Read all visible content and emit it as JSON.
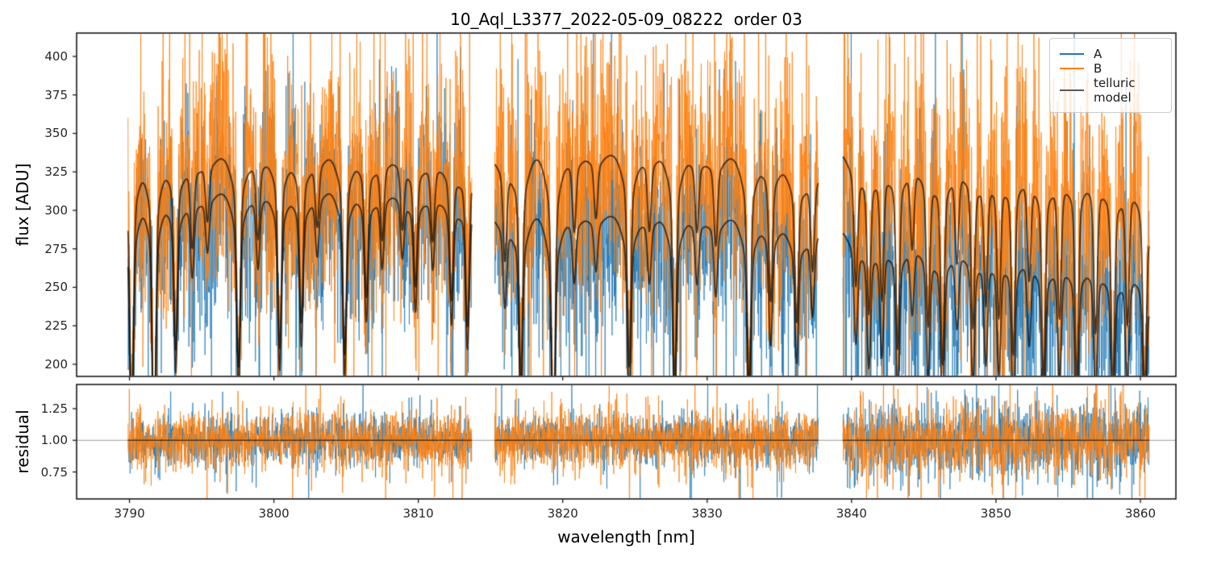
{
  "title": "10_Aql_L3377_2022-05-09_08222  order 03",
  "legend": {
    "position": "upper right",
    "entries": [
      {
        "label": "A",
        "color": "#1f77b4"
      },
      {
        "label": "B",
        "color": "#ff7f0e"
      },
      {
        "label": "telluric model",
        "color": "#595959"
      }
    ]
  },
  "chart_data": {
    "type": "line",
    "title": "10_Aql_L3377_2022-05-09_08222  order 03",
    "xlabel": "wavelength [nm]",
    "x_range_nm": [
      3786.34,
      3862.46
    ],
    "xticks": [
      "3790",
      "3800",
      "3810",
      "3820",
      "3830",
      "3840",
      "3850",
      "3860"
    ],
    "grid": false,
    "sample_step_nm": 0.018,
    "segments_nm": [
      [
        3789.9,
        3813.7
      ],
      [
        3815.3,
        3837.7
      ],
      [
        3839.4,
        3860.6
      ]
    ],
    "flux_panel": {
      "ylabel": "flux [ADU]",
      "ylim": [
        192.1,
        415.2
      ],
      "yticks": [
        "200",
        "225",
        "250",
        "275",
        "300",
        "325",
        "350",
        "375",
        "400"
      ],
      "continuum_A": [
        [
          3789.9,
          303
        ],
        [
          3791.0,
          310
        ],
        [
          3796,
          312
        ],
        [
          3800,
          313
        ],
        [
          3806,
          314
        ],
        [
          3810,
          313
        ],
        [
          3813.7,
          311
        ],
        [
          3815.3,
          296
        ],
        [
          3819,
          297
        ],
        [
          3825,
          297
        ],
        [
          3830,
          296
        ],
        [
          3834,
          293
        ],
        [
          3836.3,
          286
        ],
        [
          3837.7,
          290
        ],
        [
          3839.4,
          287
        ],
        [
          3843,
          284
        ],
        [
          3848,
          280
        ],
        [
          3852,
          276
        ],
        [
          3856,
          270
        ],
        [
          3859,
          266
        ],
        [
          3860.6,
          269
        ]
      ],
      "continuum_B": [
        [
          3789.9,
          330
        ],
        [
          3791.0,
          334
        ],
        [
          3796,
          335
        ],
        [
          3800,
          336
        ],
        [
          3806,
          336
        ],
        [
          3810,
          335
        ],
        [
          3813.7,
          333
        ],
        [
          3815.3,
          334
        ],
        [
          3819,
          336
        ],
        [
          3825,
          337
        ],
        [
          3830,
          336
        ],
        [
          3834,
          333
        ],
        [
          3836.3,
          324
        ],
        [
          3837.7,
          327
        ],
        [
          3839.4,
          337
        ],
        [
          3843,
          336
        ],
        [
          3848,
          334
        ],
        [
          3852,
          331
        ],
        [
          3856,
          328
        ],
        [
          3859,
          325
        ],
        [
          3860.6,
          322
        ]
      ],
      "telluric_lines": [
        {
          "nm": 3790.15,
          "depth": 0.4
        },
        {
          "nm": 3791.7,
          "depth": 0.45
        },
        {
          "nm": 3793.2,
          "depth": 0.3
        },
        {
          "nm": 3794.35,
          "depth": 0.14
        },
        {
          "nm": 3795.4,
          "depth": 0.1
        },
        {
          "nm": 3797.55,
          "depth": 0.33
        },
        {
          "nm": 3798.9,
          "depth": 0.13
        },
        {
          "nm": 3800.4,
          "depth": 0.3
        },
        {
          "nm": 3801.9,
          "depth": 0.26
        },
        {
          "nm": 3803.0,
          "depth": 0.11
        },
        {
          "nm": 3804.9,
          "depth": 0.31
        },
        {
          "nm": 3806.4,
          "depth": 0.22
        },
        {
          "nm": 3807.5,
          "depth": 0.13
        },
        {
          "nm": 3808.9,
          "depth": 0.11
        },
        {
          "nm": 3809.8,
          "depth": 0.2
        },
        {
          "nm": 3811.0,
          "depth": 0.13
        },
        {
          "nm": 3812.3,
          "depth": 0.22
        },
        {
          "nm": 3813.4,
          "depth": 0.26
        },
        {
          "nm": 3816.0,
          "depth": 0.16
        },
        {
          "nm": 3817.1,
          "depth": 0.34
        },
        {
          "nm": 3819.35,
          "depth": 0.45
        },
        {
          "nm": 3820.8,
          "depth": 0.12
        },
        {
          "nm": 3822.3,
          "depth": 0.1
        },
        {
          "nm": 3824.6,
          "depth": 0.33
        },
        {
          "nm": 3826.0,
          "depth": 0.12
        },
        {
          "nm": 3827.75,
          "depth": 0.35
        },
        {
          "nm": 3829.3,
          "depth": 0.12
        },
        {
          "nm": 3830.6,
          "depth": 0.14
        },
        {
          "nm": 3832.9,
          "depth": 0.36
        },
        {
          "nm": 3834.4,
          "depth": 0.22
        },
        {
          "nm": 3836.2,
          "depth": 0.24
        },
        {
          "nm": 3837.3,
          "depth": 0.16
        },
        {
          "nm": 3840.3,
          "depth": 0.2
        },
        {
          "nm": 3841.2,
          "depth": 0.24
        },
        {
          "nm": 3842.1,
          "depth": 0.22
        },
        {
          "nm": 3843.2,
          "depth": 0.3
        },
        {
          "nm": 3844.2,
          "depth": 0.14
        },
        {
          "nm": 3845.3,
          "depth": 0.26
        },
        {
          "nm": 3846.3,
          "depth": 0.32
        },
        {
          "nm": 3847.3,
          "depth": 0.16
        },
        {
          "nm": 3848.4,
          "depth": 0.26
        },
        {
          "nm": 3849.3,
          "depth": 0.22
        },
        {
          "nm": 3850.2,
          "depth": 0.24
        },
        {
          "nm": 3851.2,
          "depth": 0.3
        },
        {
          "nm": 3852.3,
          "depth": 0.18
        },
        {
          "nm": 3853.3,
          "depth": 0.34
        },
        {
          "nm": 3854.4,
          "depth": 0.24
        },
        {
          "nm": 3855.6,
          "depth": 0.34
        },
        {
          "nm": 3856.9,
          "depth": 0.26
        },
        {
          "nm": 3858.1,
          "depth": 0.34
        },
        {
          "nm": 3859.1,
          "depth": 0.24
        },
        {
          "nm": 3860.3,
          "depth": 0.34
        },
        {
          "nm": 3860.9,
          "depth": 0.26
        }
      ],
      "series": [
        {
          "name": "A",
          "color": "#1f77b4",
          "alpha": 0.75,
          "linewidth": 1,
          "continuum": "continuum_A",
          "noise_sigma_rel": [
            0.12,
            0.12,
            0.155
          ],
          "tail_prob": 0.07,
          "tail_scale": 2.4,
          "seed": 101
        },
        {
          "name": "B",
          "color": "#ff7f0e",
          "alpha": 0.8,
          "linewidth": 1,
          "continuum": "continuum_B",
          "noise_sigma_rel": [
            0.13,
            0.13,
            0.145
          ],
          "tail_prob": 0.07,
          "tail_scale": 2.4,
          "seed": 202
        },
        {
          "name": "telluric model",
          "color": "#000000",
          "alpha": 0.65,
          "linewidth": 1.9,
          "curves": [
            "continuum_A",
            "continuum_B"
          ]
        }
      ]
    },
    "residual_panel": {
      "ylabel": "residual",
      "ylim": [
        0.537,
        1.441
      ],
      "yticks": [
        "0.75",
        "1.00",
        "1.25"
      ],
      "baseline": {
        "value": 1.0,
        "color": "#999999",
        "linewidth": 1
      },
      "series": [
        {
          "name": "A",
          "color": "#1f77b4",
          "alpha": 0.75,
          "linewidth": 1,
          "noise_sigma": [
            0.095,
            0.095,
            0.14
          ],
          "tail_prob": 0.07,
          "tail_scale": 2.2,
          "seed": 303
        },
        {
          "name": "B",
          "color": "#ff7f0e",
          "alpha": 0.8,
          "linewidth": 1,
          "noise_sigma": [
            0.115,
            0.12,
            0.145
          ],
          "tail_prob": 0.07,
          "tail_scale": 2.2,
          "seed": 404
        },
        {
          "name": "telluric model",
          "color": "#000000",
          "alpha": 0.6,
          "linewidth": 1.5,
          "value": 1.0
        }
      ]
    }
  }
}
